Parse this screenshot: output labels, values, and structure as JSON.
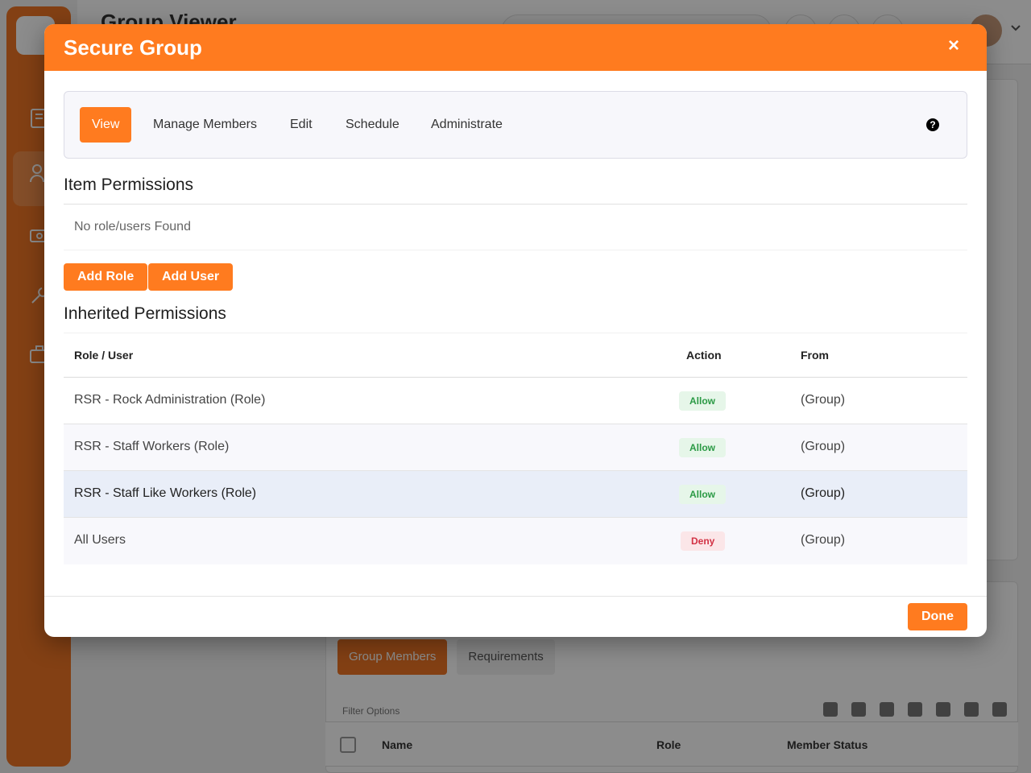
{
  "background": {
    "page_title": "Group Viewer",
    "tabs": [
      {
        "label": "Group Members"
      },
      {
        "label": "Requirements"
      }
    ],
    "filter_label": "Filter Options",
    "table_headers": [
      "Name",
      "Role",
      "Member Status"
    ]
  },
  "modal": {
    "title": "Secure Group",
    "close_icon": "×",
    "tabs": [
      {
        "label": "View",
        "active": true
      },
      {
        "label": "Manage Members",
        "active": false
      },
      {
        "label": "Edit",
        "active": false
      },
      {
        "label": "Schedule",
        "active": false
      },
      {
        "label": "Administrate",
        "active": false
      }
    ],
    "help_icon": "?",
    "item_permissions": {
      "title": "Item Permissions",
      "empty_text": "No role/users Found",
      "add_role_label": "Add Role",
      "add_user_label": "Add User"
    },
    "inherited_permissions": {
      "title": "Inherited Permissions",
      "headers": {
        "role_user": "Role / User",
        "action": "Action",
        "from": "From"
      },
      "rows": [
        {
          "name": "RSR - Rock Administration (Role)",
          "action": "Allow",
          "from": "(Group)"
        },
        {
          "name": "RSR - Staff Workers (Role)",
          "action": "Allow",
          "from": "(Group)"
        },
        {
          "name": "RSR - Staff Like Workers (Role)",
          "action": "Allow",
          "from": "(Group)"
        },
        {
          "name": "All Users",
          "action": "Deny",
          "from": "(Group)"
        }
      ]
    },
    "done_label": "Done"
  },
  "colors": {
    "accent": "#ff7b1f",
    "allow": "#2b9a45",
    "deny": "#d23244"
  }
}
